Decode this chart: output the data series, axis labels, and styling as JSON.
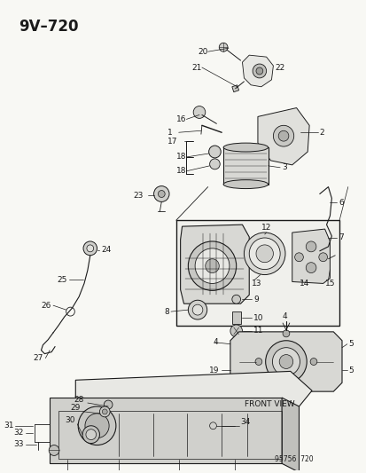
{
  "title": "9V–720",
  "subtitle_code": "95756  720",
  "bg": "#f5f5f0",
  "lc": "#1a1a1a",
  "fig_w": 4.14,
  "fig_h": 5.33,
  "dpi": 100,
  "title_fs": 11,
  "label_fs": 6.5,
  "fv_label": "FRONT VIEW"
}
